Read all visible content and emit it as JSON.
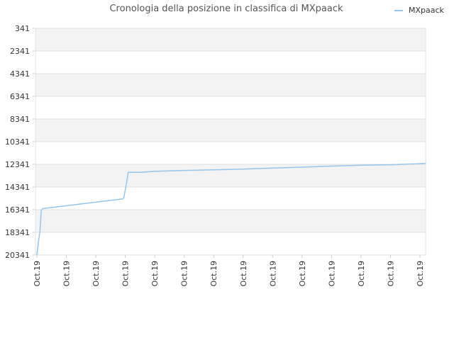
{
  "chart_data": {
    "type": "line",
    "title": "Cronologia della posizione in classifica di MXpaack",
    "xlabel": "",
    "ylabel": "",
    "y_reversed": true,
    "ylim": [
      341,
      20341
    ],
    "y_ticks": [
      "341",
      "2341",
      "4341",
      "6341",
      "8341",
      "10341",
      "12341",
      "14341",
      "16341",
      "18341",
      "20341"
    ],
    "x_ticks": [
      "Oct.19",
      "Oct.19",
      "Oct.19",
      "Oct.19",
      "Oct.19",
      "Oct.19",
      "Oct.19",
      "Oct.19",
      "Oct.19",
      "Oct.19",
      "Oct.19",
      "Oct.19",
      "Oct.19",
      "Oct.19"
    ],
    "grid": true,
    "legend": {
      "placement": "top-right"
    },
    "series": [
      {
        "name": "MXpaack",
        "color": "#95c6ee",
        "x": [
          0,
          0.5,
          1.0,
          1.5,
          2,
          3,
          4,
          5,
          6,
          7,
          8,
          9,
          10,
          11,
          12,
          13,
          13.5
        ],
        "y": [
          20341,
          18000,
          16280,
          16150,
          16050,
          15800,
          15500,
          15250,
          15050,
          14550,
          14300,
          14000,
          13750,
          13480,
          13180,
          12900,
          12650
        ],
        "points_x": [
          0,
          0.05,
          0.1,
          0.15,
          0.2,
          2.9,
          2.95,
          3.05,
          3.1,
          3.5,
          4,
          5,
          6,
          7,
          8,
          9,
          10,
          11,
          12,
          12.9,
          13.2
        ],
        "points_y": [
          20341,
          19200,
          18300,
          16400,
          16250,
          15400,
          15300,
          13900,
          13050,
          13050,
          12960,
          12880,
          12830,
          12760,
          12670,
          12590,
          12500,
          12420,
          12380,
          12300,
          12250
        ]
      }
    ]
  }
}
